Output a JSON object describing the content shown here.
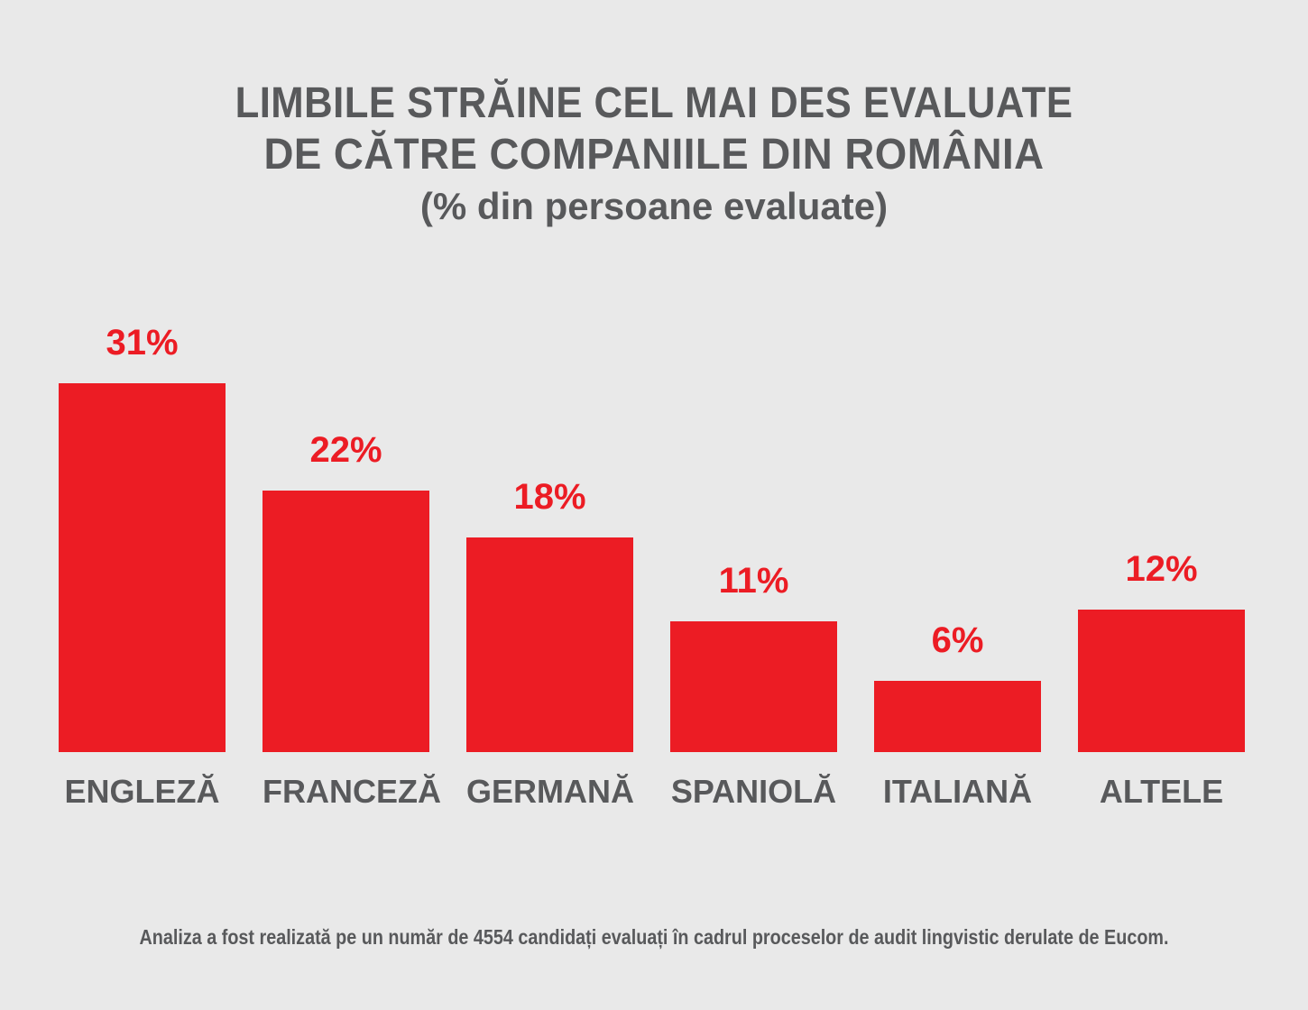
{
  "title": {
    "line1": "LIMBILE STRĂINE CEL MAI DES EVALUATE",
    "line2": "DE CĂTRE COMPANIILE DIN ROMÂNIA",
    "subtitle": "(% din persoane evaluate)"
  },
  "chart_data": {
    "type": "bar",
    "title": "LIMBILE STRĂINE CEL MAI DES EVALUATE DE CĂTRE COMPANIILE DIN ROMÂNIA",
    "subtitle": "(% din persoane evaluate)",
    "categories": [
      "ENGLEZĂ",
      "FRANCEZĂ",
      "GERMANĂ",
      "SPANIOLĂ",
      "ITALIANĂ",
      "ALTELE"
    ],
    "values": [
      31,
      22,
      18,
      11,
      6,
      12
    ],
    "value_labels": [
      "31%",
      "22%",
      "18%",
      "11%",
      "6%",
      "12%"
    ],
    "xlabel": "",
    "ylabel": "% din persoane evaluate",
    "ylim": [
      0,
      33
    ],
    "grid": false,
    "legend": false,
    "value_labels_position": "above-bars"
  },
  "footer": {
    "note": "Analiza a fost realizată pe un număr de 4554 candidați evaluați în cadrul proceselor de audit lingvistic derulate de Eucom."
  },
  "colors": {
    "bar_red": "#ec1c24",
    "value_label_red": "#ec1c24",
    "text_gray": "#58595b",
    "background": "#e9e9e9"
  }
}
